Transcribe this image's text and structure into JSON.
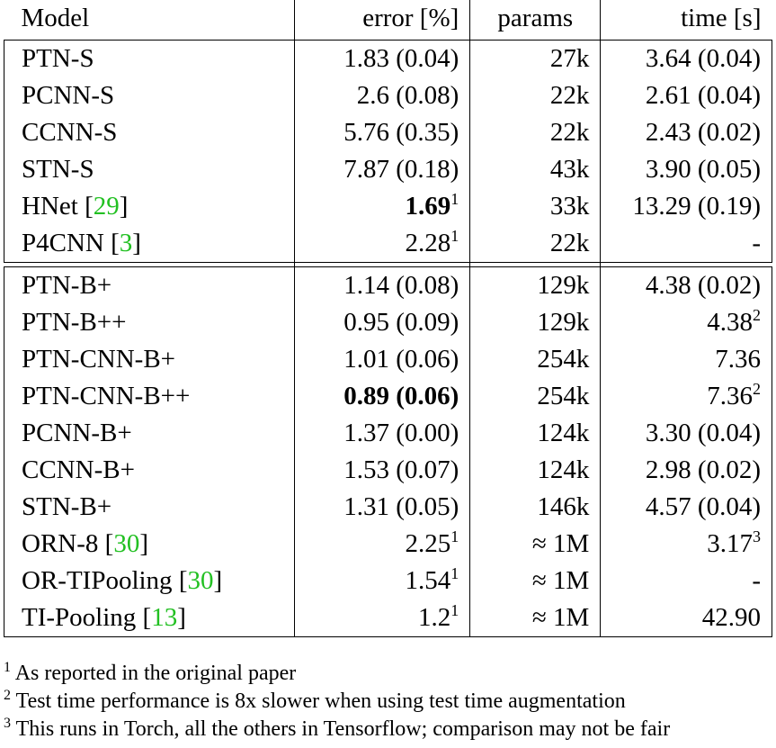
{
  "header": {
    "model": "Model",
    "error": "error [%]",
    "params": "params",
    "time": "time [s]"
  },
  "group1": [
    {
      "model": "PTN-S",
      "error": "1.83 (0.04)",
      "params": "27k",
      "time": "3.64 (0.04)"
    },
    {
      "model": "PCNN-S",
      "error": "2.6 (0.08)",
      "params": "22k",
      "time": "2.61 (0.04)"
    },
    {
      "model": "CCNN-S",
      "error": "5.76 (0.35)",
      "params": "22k",
      "time": "2.43 (0.02)"
    },
    {
      "model": "STN-S",
      "error": "7.87 (0.18)",
      "params": "43k",
      "time": "3.90 (0.05)"
    },
    {
      "model": "HNet",
      "cite": "29",
      "error": "1.69",
      "error_sup": "1",
      "params": "33k",
      "time": "13.29 (0.19)"
    },
    {
      "model": "P4CNN",
      "cite": "3",
      "error": "2.28",
      "error_sup": "1",
      "params": "22k",
      "time": "-"
    }
  ],
  "group2": [
    {
      "model": "PTN-B+",
      "error": "1.14 (0.08)",
      "params": "129k",
      "time": "4.38 (0.02)"
    },
    {
      "model": "PTN-B++",
      "error": "0.95 (0.09)",
      "params": "129k",
      "time": "4.38",
      "time_sup": "2"
    },
    {
      "model": "PTN-CNN-B+",
      "error": "1.01 (0.06)",
      "params": "254k",
      "time": "7.36"
    },
    {
      "model": "PTN-CNN-B++",
      "error": "0.89 (0.06)",
      "params": "254k",
      "time": "7.36",
      "time_sup": "2"
    },
    {
      "model": "PCNN-B+",
      "error": "1.37 (0.00)",
      "params": "124k",
      "time": "3.30 (0.04)"
    },
    {
      "model": "CCNN-B+",
      "error": "1.53 (0.07)",
      "params": "124k",
      "time": "2.98 (0.02)"
    },
    {
      "model": "STN-B+",
      "error": "1.31 (0.05)",
      "params": "146k",
      "time": "4.57 (0.04)"
    },
    {
      "model": "ORN-8",
      "cite": "30",
      "error": "2.25",
      "error_sup": "1",
      "params": "≈ 1M",
      "time": "3.17",
      "time_sup": "3"
    },
    {
      "model": "OR-TIPooling",
      "cite": "30",
      "error": "1.54",
      "error_sup": "1",
      "params": "≈ 1M",
      "time": "-"
    },
    {
      "model": "TI-Pooling",
      "cite": "13",
      "error": "1.2",
      "error_sup": "1",
      "params": "≈ 1M",
      "time": "42.90"
    }
  ],
  "footnotes": [
    {
      "mark": "1",
      "text": "As reported in the original paper"
    },
    {
      "mark": "2",
      "text": "Test time performance is 8x slower when using test time augmentation"
    },
    {
      "mark": "3",
      "text": "This runs in Torch, all the others in Tensorflow; comparison may not be fair"
    }
  ]
}
